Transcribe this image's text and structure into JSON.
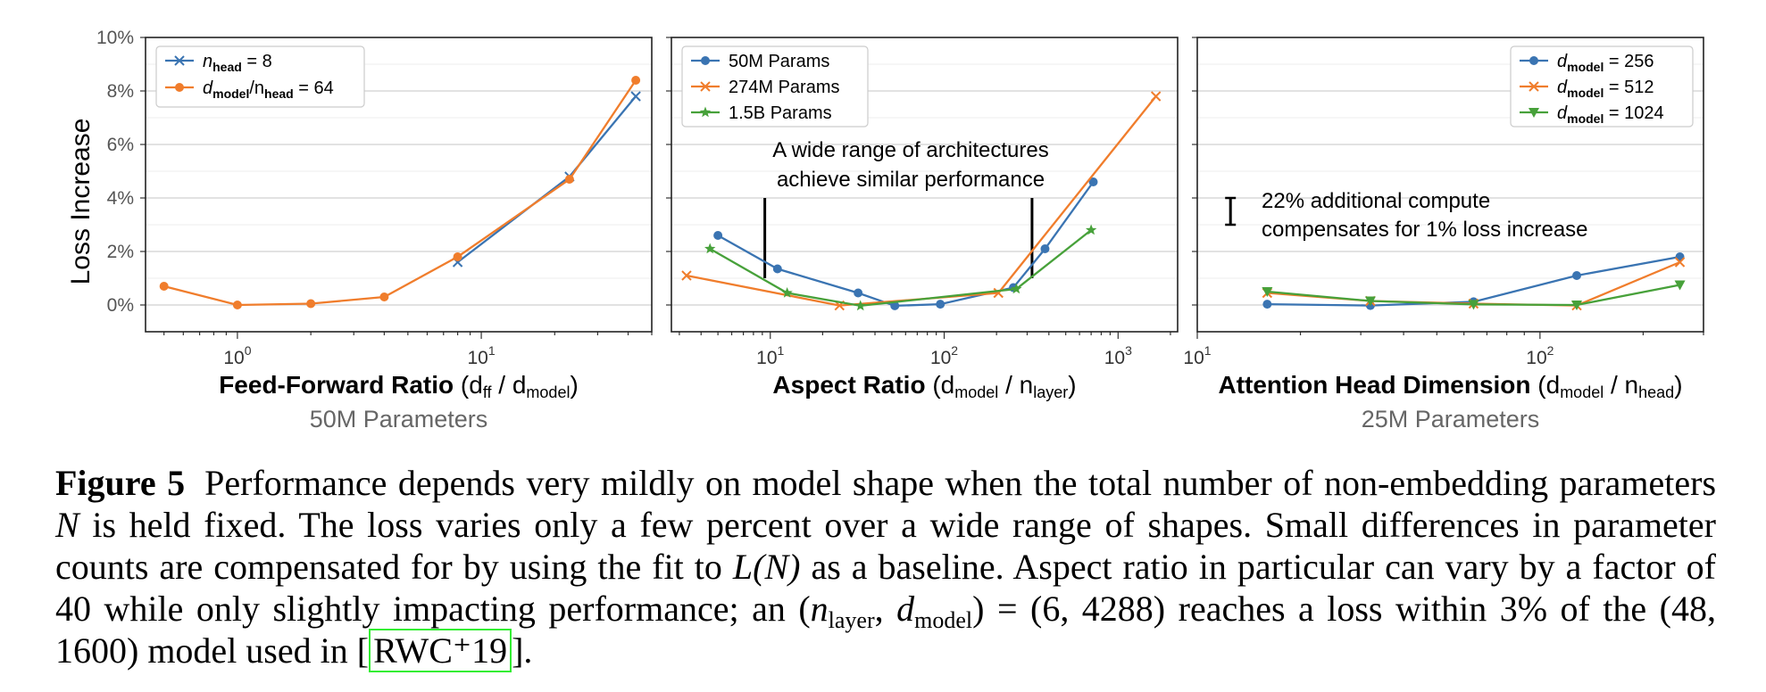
{
  "y_ticks": [
    "10%",
    "8%",
    "6%",
    "4%",
    "2%",
    "0%"
  ],
  "ylabel": "Loss Increase",
  "chart_data": [
    {
      "type": "line",
      "xscale": "log",
      "xlim": [
        0.42,
        50
      ],
      "ylim": [
        -0.01,
        0.1
      ],
      "x_ticks": [
        {
          "v": 1,
          "label": "10",
          "exp": "0"
        },
        {
          "v": 10,
          "label": "10",
          "exp": "1"
        }
      ],
      "xlabel": {
        "bold": "Feed-Forward Ratio",
        "open": " (d",
        "s1": "ff",
        "mid": " / d",
        "s2": "model",
        "close": ")"
      },
      "subtitle": "50M Parameters",
      "legend_position": "top-left",
      "grid": true,
      "series": [
        {
          "name_main": "n",
          "name_sub": "head",
          "name_rest": " = 8",
          "color": "#3a74b2",
          "marker": "x",
          "x": [
            8,
            23,
            43
          ],
          "y": [
            0.016,
            0.048,
            0.078
          ]
        },
        {
          "name_main": "d",
          "name_sub": "model",
          "name_rest": "/n",
          "name_sub2": "head",
          "name_rest2": " = 64",
          "color": "#f07d2c",
          "marker": "circle",
          "x": [
            0.5,
            1,
            2,
            4,
            8,
            23,
            43
          ],
          "y": [
            0.007,
            0.0,
            0.0005,
            0.003,
            0.018,
            0.047,
            0.084
          ]
        }
      ]
    },
    {
      "type": "line",
      "xscale": "log",
      "xlim": [
        2.7,
        2200
      ],
      "ylim": [
        -0.01,
        0.1
      ],
      "x_ticks": [
        {
          "v": 10,
          "label": "10",
          "exp": "1"
        },
        {
          "v": 100,
          "label": "10",
          "exp": "2"
        },
        {
          "v": 1000,
          "label": "10",
          "exp": "3"
        }
      ],
      "xlabel": {
        "bold": "Aspect Ratio",
        "open": " (d",
        "s1": "model",
        "mid": " / n",
        "s2": "layer",
        "close": ")"
      },
      "subtitle": "",
      "legend_position": "top-left",
      "grid": true,
      "annotation": {
        "line1": "A wide range of architectures",
        "line2": "achieve similar performance",
        "bars": [
          {
            "x": 9.3,
            "y0": 0.01,
            "y1": 0.04
          },
          {
            "x": 320,
            "y0": 0.01,
            "y1": 0.04
          }
        ]
      },
      "series": [
        {
          "name": "50M Params",
          "color": "#3a74b2",
          "marker": "circle",
          "x": [
            5,
            11,
            32,
            52,
            95,
            250,
            380,
            720
          ],
          "y": [
            0.026,
            0.0135,
            0.0045,
            -0.0003,
            0.0003,
            0.0065,
            0.021,
            0.046
          ]
        },
        {
          "name": "274M Params",
          "color": "#f07d2c",
          "marker": "x",
          "x": [
            3.3,
            25,
            205,
            1650
          ],
          "y": [
            0.011,
            -0.0002,
            0.0045,
            0.078
          ]
        },
        {
          "name": "1.5B Params",
          "color": "#47a13a",
          "marker": "star",
          "x": [
            4.5,
            12.5,
            33,
            260,
            700
          ],
          "y": [
            0.021,
            0.0045,
            -0.0003,
            0.006,
            0.028
          ]
        }
      ]
    },
    {
      "type": "line",
      "xscale": "log",
      "xlim": [
        10,
        300
      ],
      "ylim": [
        -0.01,
        0.1
      ],
      "x_ticks": [
        {
          "v": 10,
          "label": "10",
          "exp": "1"
        },
        {
          "v": 100,
          "label": "10",
          "exp": "2"
        }
      ],
      "xlabel": {
        "bold": "Attention Head Dimension",
        "open": " (d",
        "s1": "model",
        "mid": " / n",
        "s2": "head",
        "close": ")"
      },
      "subtitle": "25M Parameters",
      "legend_position": "top-right",
      "grid": true,
      "annotation": {
        "line1": "22% additional compute",
        "line2": "compensates for 1% loss increase",
        "bars": [
          {
            "x": 12.5,
            "y0": 0.03,
            "y1": 0.04
          }
        ]
      },
      "series": [
        {
          "name_main": "d",
          "name_sub": "model",
          "name_rest": " = 256",
          "color": "#3a74b2",
          "marker": "circle",
          "x": [
            16,
            32,
            64,
            128,
            256
          ],
          "y": [
            0.0003,
            -0.0002,
            0.0012,
            0.011,
            0.018
          ]
        },
        {
          "name_main": "d",
          "name_sub": "model",
          "name_rest": " = 512",
          "color": "#f07d2c",
          "marker": "x",
          "x": [
            16,
            32,
            64,
            128,
            256
          ],
          "y": [
            0.0045,
            0.0015,
            0.0005,
            -0.0002,
            0.016
          ]
        },
        {
          "name_main": "d",
          "name_sub": "model",
          "name_rest": " = 1024",
          "color": "#47a13a",
          "marker": "tri-down",
          "x": [
            16,
            32,
            64,
            128,
            256
          ],
          "y": [
            0.005,
            0.0015,
            0.0002,
            0.0,
            0.0075
          ]
        }
      ]
    }
  ],
  "caption": {
    "label": "Figure 5",
    "t1": "Performance depends very mildly on model shape when the total number of non-embedding parameters ",
    "N": "N",
    "t2": " is held fixed. The loss varies only a few percent over a wide range of shapes. Small differences in parameter counts are compensated for by using the fit to ",
    "LN": "L(N)",
    "t3": " as a baseline. Aspect ratio in particular can vary by a factor of 40 while only slightly impacting performance; an (",
    "n": "n",
    "layer": "layer",
    "comma": ", ",
    "d": "d",
    "model": "model",
    "t4": ") = (6, 4288) reaches a loss within 3% of the (48, 1600) model used in ",
    "lb": "[",
    "cite": "RWC⁺19",
    "rb": "]",
    "end": "."
  }
}
